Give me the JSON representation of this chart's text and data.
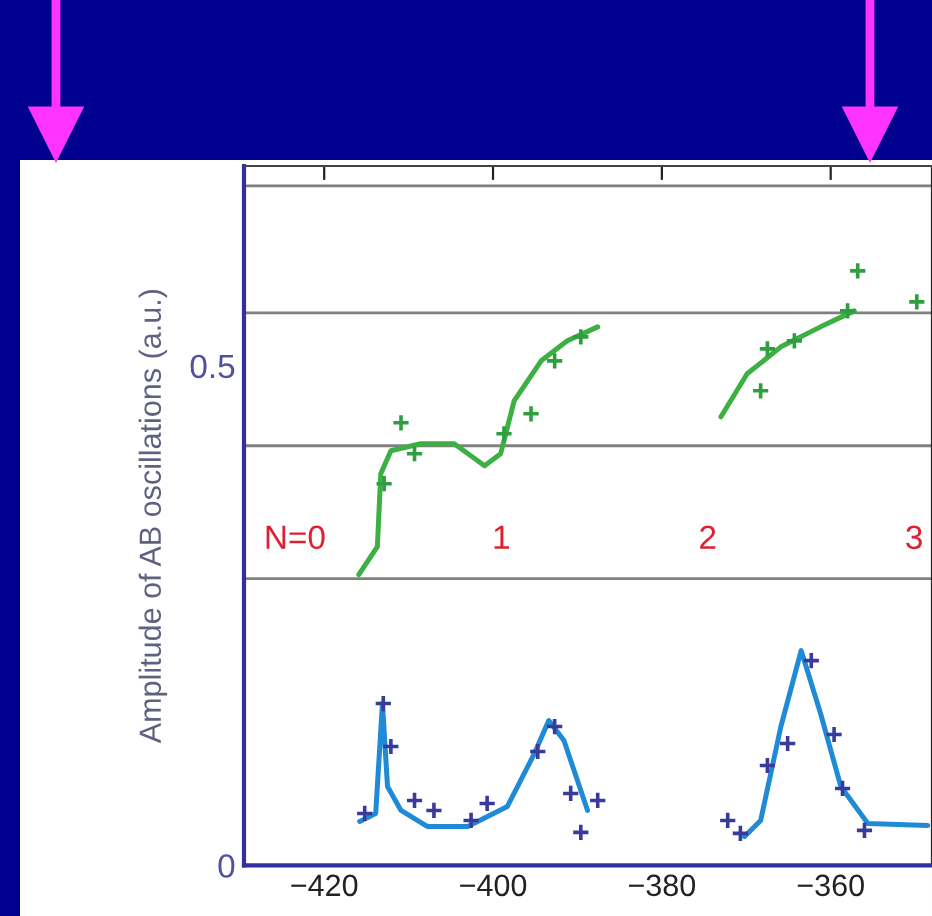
{
  "chart_data": {
    "type": "line",
    "ylabel": "Amplitude of AB oscillations (a.u.)",
    "xlim": [
      -429.5,
      -348
    ],
    "ylim": [
      0,
      0.7
    ],
    "xticks": [
      {
        "value": -420,
        "label": "−420"
      },
      {
        "value": -400,
        "label": "−400"
      },
      {
        "value": -380,
        "label": "−380"
      },
      {
        "value": -360,
        "label": "−360"
      }
    ],
    "yticks": [
      0,
      0.5
    ],
    "grid": false,
    "ref_lines": [
      {
        "axis": "y",
        "value": 0.68,
        "color": "#808080"
      },
      {
        "axis": "y",
        "value": 0.553,
        "color": "#808080"
      },
      {
        "axis": "y",
        "value": 0.42,
        "color": "#808080"
      },
      {
        "axis": "y",
        "value": 0.287,
        "color": "#808080"
      }
    ],
    "annotations": [
      "N=0",
      "1",
      "2",
      "3"
    ],
    "series": [
      {
        "color": "#3cb043",
        "x": [
          -415.9,
          -413.7,
          -413.3,
          -412.1,
          -408.6,
          -404.6,
          -401.0,
          -399.1,
          -397.5,
          -394.3,
          -391.2,
          -387.6,
          -380,
          -373.0,
          -369.9,
          -365.9,
          -361.2,
          -357.2
        ],
        "values": [
          0.291,
          0.319,
          0.392,
          0.415,
          0.422,
          0.422,
          0.4,
          0.412,
          0.465,
          0.505,
          0.525,
          0.539,
          null,
          0.449,
          0.492,
          0.519,
          0.539,
          0.555
        ]
      },
      {
        "type": "scatter",
        "marker": "cross",
        "color": "#2e9e3e",
        "x": [
          -410.9,
          -409.3,
          -412.9,
          -395.5,
          -398.7,
          -392.7,
          -389.6,
          -368.3,
          -367.5,
          -364.3,
          -356.8,
          -358.0,
          -349.8
        ],
        "values": [
          0.443,
          0.412,
          0.382,
          0.452,
          0.432,
          0.505,
          0.529,
          0.475,
          0.517,
          0.525,
          0.595,
          0.555,
          0.564
        ]
      },
      {
        "color": "#1f8ad6",
        "x": [
          -415.8,
          -413.9,
          -413.1,
          -412.5,
          -410.9,
          -407.8,
          -403.0,
          -398.3,
          -395.1,
          -393.4,
          -391.6,
          -388.8,
          -380,
          -370.2,
          -368.3,
          -365.9,
          -363.5,
          -361.2,
          -358.8,
          -355.6,
          -348.5
        ],
        "values": [
          0.044,
          0.052,
          0.162,
          0.079,
          0.055,
          0.039,
          0.039,
          0.059,
          0.112,
          0.145,
          0.125,
          0.055,
          null,
          0.029,
          0.045,
          0.139,
          0.215,
          0.152,
          0.079,
          0.042,
          0.04
        ]
      },
      {
        "type": "scatter",
        "marker": "cross",
        "color": "#3a3a9a",
        "x": [
          -415.2,
          -413.0,
          -412.1,
          -409.3,
          -407.0,
          -402.6,
          -400.7,
          -394.7,
          -392.7,
          -390.8,
          -389.6,
          -387.6,
          -372.2,
          -370.7,
          -367.5,
          -365.1,
          -362.3,
          -359.6,
          -358.6,
          -356.0
        ],
        "values": [
          0.052,
          0.162,
          0.119,
          0.065,
          0.055,
          0.045,
          0.062,
          0.114,
          0.139,
          0.072,
          0.033,
          0.065,
          0.045,
          0.032,
          0.1,
          0.122,
          0.205,
          0.131,
          0.077,
          0.035
        ]
      }
    ]
  }
}
